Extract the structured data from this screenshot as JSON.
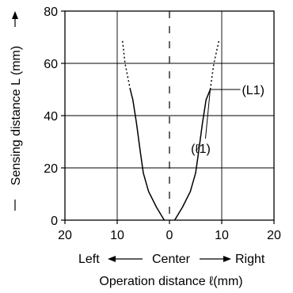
{
  "chart_data": {
    "type": "line",
    "title": "",
    "ylabel": "Sensing distance L (mm)",
    "xlabel": "Operation distance ℓ(mm)",
    "xlim": [
      -20,
      20
    ],
    "ylim": [
      0,
      80
    ],
    "x_ticks": [
      -20,
      -10,
      0,
      10,
      20
    ],
    "x_tick_labels": [
      "20",
      "10",
      "0",
      "10",
      "20"
    ],
    "y_ticks": [
      0,
      20,
      40,
      60,
      80
    ],
    "y_tick_labels": [
      "0",
      "20",
      "40",
      "60",
      "80"
    ],
    "grid": true,
    "direction_labels": {
      "left": "Left",
      "center": "Center",
      "right": "Right"
    },
    "series": [
      {
        "side": "left",
        "solid": [
          {
            "x": -1.0,
            "y": 0
          },
          {
            "x": -2.5,
            "y": 5
          },
          {
            "x": -4.0,
            "y": 11
          },
          {
            "x": -5.0,
            "y": 18
          },
          {
            "x": -5.5,
            "y": 25
          },
          {
            "x": -6.3,
            "y": 37
          },
          {
            "x": -7.0,
            "y": 46
          },
          {
            "x": -7.5,
            "y": 50
          }
        ],
        "dashed": [
          {
            "x": -7.5,
            "y": 50
          },
          {
            "x": -8.5,
            "y": 60
          },
          {
            "x": -9.0,
            "y": 69
          }
        ]
      },
      {
        "side": "right",
        "solid": [
          {
            "x": 1.0,
            "y": 0
          },
          {
            "x": 2.5,
            "y": 5
          },
          {
            "x": 4.0,
            "y": 11
          },
          {
            "x": 5.0,
            "y": 18
          },
          {
            "x": 5.5,
            "y": 25
          },
          {
            "x": 6.3,
            "y": 37
          },
          {
            "x": 7.0,
            "y": 46
          },
          {
            "x": 7.8,
            "y": 50
          }
        ],
        "dashed": [
          {
            "x": 7.8,
            "y": 50
          },
          {
            "x": 8.5,
            "y": 60
          },
          {
            "x": 9.5,
            "y": 69
          }
        ]
      }
    ],
    "annotations": [
      {
        "text": "(L1)",
        "point": {
          "x": 7.8,
          "y": 50
        }
      },
      {
        "text": "(ℓ1)",
        "point": {
          "x": 7.8,
          "y": 50
        }
      }
    ]
  }
}
